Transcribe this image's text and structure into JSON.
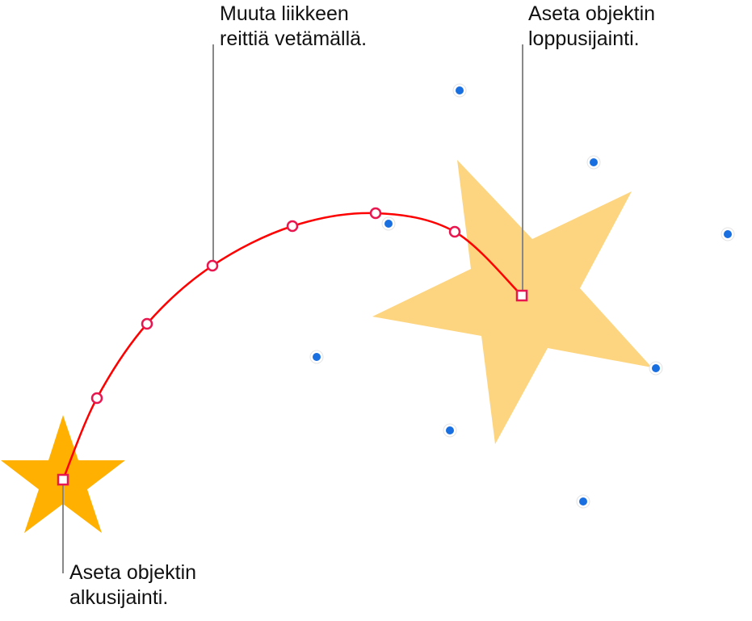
{
  "callouts": {
    "path": {
      "line1": "Muuta liikkeen",
      "line2": "reittiä vetämällä."
    },
    "end": {
      "line1": "Aseta objektin",
      "line2": "loppusijainti."
    },
    "start": {
      "line1": "Aseta objektin",
      "line2": "alkusijainti."
    }
  },
  "colors": {
    "start_star": "#FFB000",
    "end_star": "#FDD580",
    "path": "#FF0000",
    "handle_border": "#E8174F",
    "selection_dot": "#1A6FE0",
    "leader_line": "#888888"
  }
}
